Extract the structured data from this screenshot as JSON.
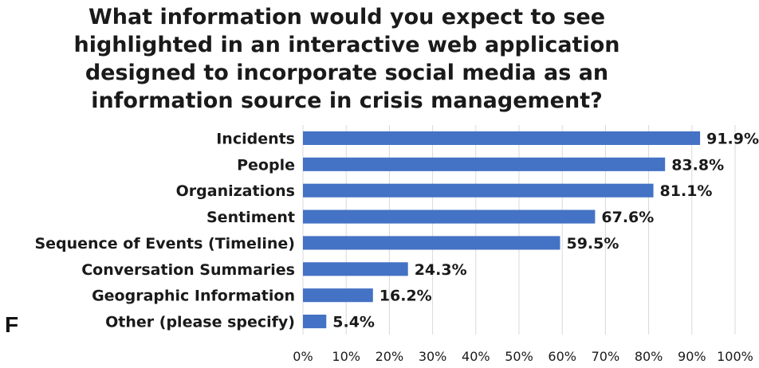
{
  "panel_label": "F",
  "chart_data": {
    "type": "bar",
    "orientation": "horizontal",
    "title": "What information would you expect to see highlighted in an interactive web application designed to incorporate social media as an information source in crisis management?",
    "title_lines": [
      "What information would you expect to see",
      "highlighted in an interactive web application",
      "designed to incorporate social media as an",
      "information source in crisis management?"
    ],
    "categories": [
      "Incidents",
      "People",
      "Organizations",
      "Sentiment",
      "Sequence of Events (Timeline)",
      "Conversation Summaries",
      "Geographic Information",
      "Other (please specify)"
    ],
    "values": [
      91.9,
      83.8,
      81.1,
      67.6,
      59.5,
      24.3,
      16.2,
      5.4
    ],
    "value_labels": [
      "91.9%",
      "83.8%",
      "81.1%",
      "67.6%",
      "59.5%",
      "24.3%",
      "16.2%",
      "5.4%"
    ],
    "xlim": [
      0,
      100
    ],
    "xticks": [
      0,
      10,
      20,
      30,
      40,
      50,
      60,
      70,
      80,
      90,
      100
    ],
    "xtick_labels": [
      "0%",
      "10%",
      "20%",
      "30%",
      "40%",
      "50%",
      "60%",
      "70%",
      "80%",
      "90%",
      "100%"
    ],
    "grid": "vertical",
    "bar_color": "#4472C4",
    "grid_color": "#D9D9D9",
    "text_color": "#1A1A1A"
  }
}
